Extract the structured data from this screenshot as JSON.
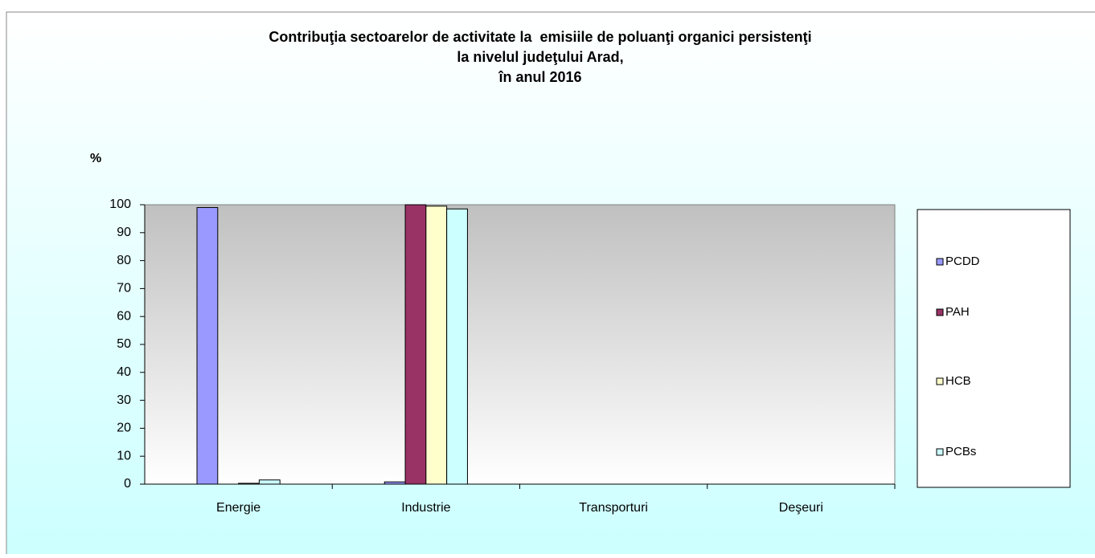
{
  "chart_data": {
    "type": "bar",
    "title": [
      "Contribuţia sectoarelor de activitate la  emisiile de poluanţi organici persistenţi",
      "la nivelul judeţului Arad,",
      "în anul 2016"
    ],
    "y_label": "%",
    "categories": [
      "Energie",
      "Industrie",
      "Transporturi",
      "Deşeuri"
    ],
    "series": [
      {
        "name": "PCDD",
        "color": "#9999ff",
        "values": [
          99,
          0.8,
          0,
          0
        ]
      },
      {
        "name": "PAH",
        "color": "#993366",
        "values": [
          0,
          100,
          0,
          0
        ]
      },
      {
        "name": "HCB",
        "color": "#ffffcc",
        "values": [
          0.3,
          99.5,
          0,
          0
        ]
      },
      {
        "name": "PCBs",
        "color": "#ccffff",
        "values": [
          1.5,
          98.5,
          0,
          0
        ]
      }
    ],
    "ylim": [
      0,
      100
    ],
    "yticks": [
      0,
      10,
      20,
      30,
      40,
      50,
      60,
      70,
      80,
      90,
      100
    ],
    "grid": false,
    "legend": "right"
  }
}
